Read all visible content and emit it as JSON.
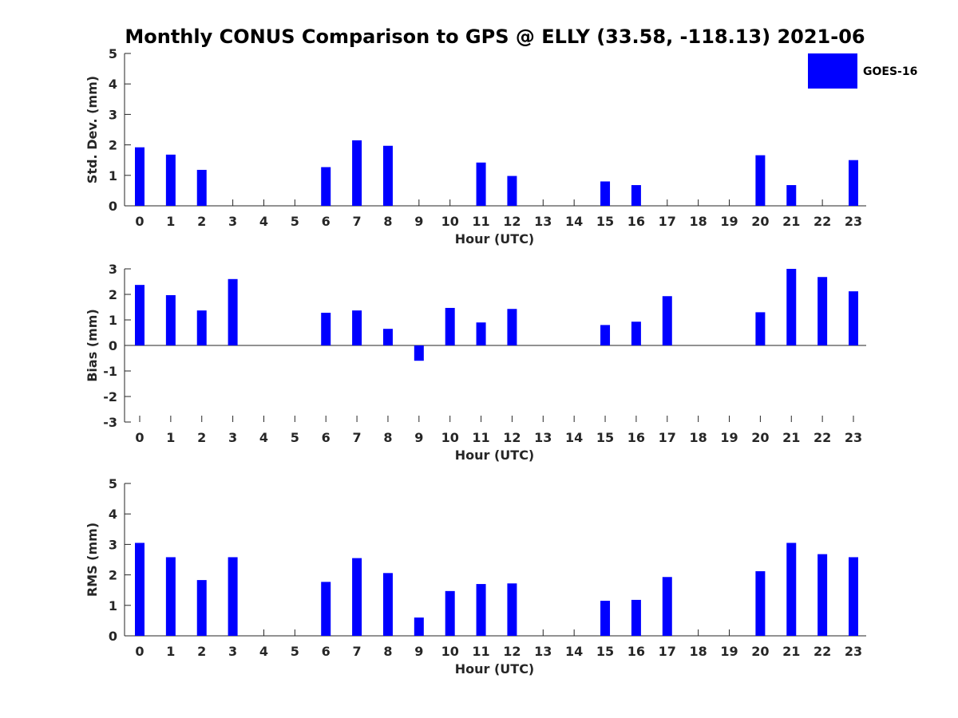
{
  "title": "Monthly CONUS Comparison to GPS @ ELLY (33.58, -118.13) 2021-06",
  "legend": {
    "label": "GOES-16",
    "color": "#0000ff"
  },
  "bar_color": "#0000ff",
  "chart_data": [
    {
      "type": "bar",
      "name": "std-dev",
      "ylabel": "Std. Dev. (mm)",
      "xlabel": "Hour (UTC)",
      "ylim": [
        0,
        5
      ],
      "yticks": [
        0,
        1,
        2,
        3,
        4,
        5
      ],
      "categories": [
        "0",
        "1",
        "2",
        "3",
        "4",
        "5",
        "6",
        "7",
        "8",
        "9",
        "10",
        "11",
        "12",
        "13",
        "14",
        "15",
        "16",
        "17",
        "18",
        "19",
        "20",
        "21",
        "22",
        "23"
      ],
      "series": [
        {
          "name": "GOES-16",
          "values": [
            1.92,
            1.68,
            1.18,
            null,
            null,
            null,
            1.27,
            2.15,
            1.97,
            null,
            null,
            1.42,
            0.98,
            null,
            null,
            0.8,
            0.68,
            null,
            null,
            null,
            1.66,
            0.68,
            null,
            1.5
          ]
        }
      ]
    },
    {
      "type": "bar",
      "name": "bias",
      "ylabel": "Bias (mm)",
      "xlabel": "Hour (UTC)",
      "ylim": [
        -3,
        3
      ],
      "yticks": [
        -3,
        -2,
        -1,
        0,
        1,
        2,
        3
      ],
      "categories": [
        "0",
        "1",
        "2",
        "3",
        "4",
        "5",
        "6",
        "7",
        "8",
        "9",
        "10",
        "11",
        "12",
        "13",
        "14",
        "15",
        "16",
        "17",
        "18",
        "19",
        "20",
        "21",
        "22",
        "23"
      ],
      "series": [
        {
          "name": "GOES-16",
          "values": [
            2.37,
            1.97,
            1.37,
            2.6,
            null,
            null,
            1.28,
            1.37,
            0.65,
            -0.6,
            1.47,
            0.9,
            1.43,
            null,
            null,
            0.8,
            0.93,
            1.93,
            null,
            null,
            1.3,
            3.0,
            2.68,
            2.12
          ]
        }
      ]
    },
    {
      "type": "bar",
      "name": "rms",
      "ylabel": "RMS (mm)",
      "xlabel": "Hour (UTC)",
      "ylim": [
        0,
        5
      ],
      "yticks": [
        0,
        1,
        2,
        3,
        4,
        5
      ],
      "categories": [
        "0",
        "1",
        "2",
        "3",
        "4",
        "5",
        "6",
        "7",
        "8",
        "9",
        "10",
        "11",
        "12",
        "13",
        "14",
        "15",
        "16",
        "17",
        "18",
        "19",
        "20",
        "21",
        "22",
        "23"
      ],
      "series": [
        {
          "name": "GOES-16",
          "values": [
            3.05,
            2.58,
            1.83,
            2.58,
            null,
            null,
            1.77,
            2.55,
            2.06,
            0.6,
            1.47,
            1.7,
            1.72,
            null,
            null,
            1.15,
            1.18,
            1.93,
            null,
            null,
            2.12,
            3.05,
            2.68,
            2.58
          ]
        }
      ]
    }
  ]
}
